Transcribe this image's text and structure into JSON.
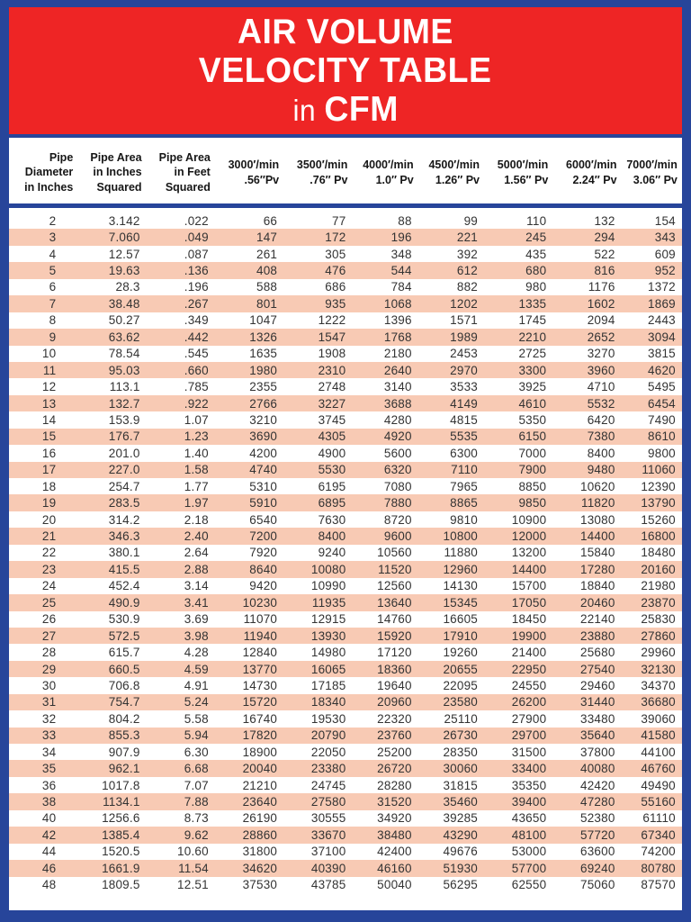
{
  "title": {
    "line1": "AIR VOLUME",
    "line2": "VELOCITY TABLE",
    "line3_prefix": "in ",
    "line3_bold": "CFM"
  },
  "colors": {
    "banner_red": "#ee2525",
    "border_navy": "#27459a",
    "stripe_salmon": "#f8cab4",
    "text": "#333333"
  },
  "table": {
    "headers": [
      [
        "Pipe",
        "Diameter",
        "in Inches"
      ],
      [
        "Pipe Area",
        "in Inches",
        "Squared"
      ],
      [
        "Pipe Area",
        "in Feet",
        "Squared"
      ],
      [
        "3000′/min",
        ".56″Pv"
      ],
      [
        "3500′/min",
        ".76″ Pv"
      ],
      [
        "4000′/min",
        "1.0″ Pv"
      ],
      [
        "4500′/min",
        "1.26″ Pv"
      ],
      [
        "5000′/min",
        "1.56″ Pv"
      ],
      [
        "6000′/min",
        "2.24″ Pv"
      ],
      [
        "7000′/min",
        "3.06″ Pv"
      ]
    ],
    "rows": [
      [
        "2",
        "3.142",
        ".022",
        "66",
        "77",
        "88",
        "99",
        "110",
        "132",
        "154"
      ],
      [
        "3",
        "7.060",
        ".049",
        "147",
        "172",
        "196",
        "221",
        "245",
        "294",
        "343"
      ],
      [
        "4",
        "12.57",
        ".087",
        "261",
        "305",
        "348",
        "392",
        "435",
        "522",
        "609"
      ],
      [
        "5",
        "19.63",
        ".136",
        "408",
        "476",
        "544",
        "612",
        "680",
        "816",
        "952"
      ],
      [
        "6",
        "28.3",
        ".196",
        "588",
        "686",
        "784",
        "882",
        "980",
        "1176",
        "1372"
      ],
      [
        "7",
        "38.48",
        ".267",
        "801",
        "935",
        "1068",
        "1202",
        "1335",
        "1602",
        "1869"
      ],
      [
        "8",
        "50.27",
        ".349",
        "1047",
        "1222",
        "1396",
        "1571",
        "1745",
        "2094",
        "2443"
      ],
      [
        "9",
        "63.62",
        ".442",
        "1326",
        "1547",
        "1768",
        "1989",
        "2210",
        "2652",
        "3094"
      ],
      [
        "10",
        "78.54",
        ".545",
        "1635",
        "1908",
        "2180",
        "2453",
        "2725",
        "3270",
        "3815"
      ],
      [
        "11",
        "95.03",
        ".660",
        "1980",
        "2310",
        "2640",
        "2970",
        "3300",
        "3960",
        "4620"
      ],
      [
        "12",
        "113.1",
        ".785",
        "2355",
        "2748",
        "3140",
        "3533",
        "3925",
        "4710",
        "5495"
      ],
      [
        "13",
        "132.7",
        ".922",
        "2766",
        "3227",
        "3688",
        "4149",
        "4610",
        "5532",
        "6454"
      ],
      [
        "14",
        "153.9",
        "1.07",
        "3210",
        "3745",
        "4280",
        "4815",
        "5350",
        "6420",
        "7490"
      ],
      [
        "15",
        "176.7",
        "1.23",
        "3690",
        "4305",
        "4920",
        "5535",
        "6150",
        "7380",
        "8610"
      ],
      [
        "16",
        "201.0",
        "1.40",
        "4200",
        "4900",
        "5600",
        "6300",
        "7000",
        "8400",
        "9800"
      ],
      [
        "17",
        "227.0",
        "1.58",
        "4740",
        "5530",
        "6320",
        "7110",
        "7900",
        "9480",
        "11060"
      ],
      [
        "18",
        "254.7",
        "1.77",
        "5310",
        "6195",
        "7080",
        "7965",
        "8850",
        "10620",
        "12390"
      ],
      [
        "19",
        "283.5",
        "1.97",
        "5910",
        "6895",
        "7880",
        "8865",
        "9850",
        "11820",
        "13790"
      ],
      [
        "20",
        "314.2",
        "2.18",
        "6540",
        "7630",
        "8720",
        "9810",
        "10900",
        "13080",
        "15260"
      ],
      [
        "21",
        "346.3",
        "2.40",
        "7200",
        "8400",
        "9600",
        "10800",
        "12000",
        "14400",
        "16800"
      ],
      [
        "22",
        "380.1",
        "2.64",
        "7920",
        "9240",
        "10560",
        "11880",
        "13200",
        "15840",
        "18480"
      ],
      [
        "23",
        "415.5",
        "2.88",
        "8640",
        "10080",
        "11520",
        "12960",
        "14400",
        "17280",
        "20160"
      ],
      [
        "24",
        "452.4",
        "3.14",
        "9420",
        "10990",
        "12560",
        "14130",
        "15700",
        "18840",
        "21980"
      ],
      [
        "25",
        "490.9",
        "3.41",
        "10230",
        "11935",
        "13640",
        "15345",
        "17050",
        "20460",
        "23870"
      ],
      [
        "26",
        "530.9",
        "3.69",
        "11070",
        "12915",
        "14760",
        "16605",
        "18450",
        "22140",
        "25830"
      ],
      [
        "27",
        "572.5",
        "3.98",
        "11940",
        "13930",
        "15920",
        "17910",
        "19900",
        "23880",
        "27860"
      ],
      [
        "28",
        "615.7",
        "4.28",
        "12840",
        "14980",
        "17120",
        "19260",
        "21400",
        "25680",
        "29960"
      ],
      [
        "29",
        "660.5",
        "4.59",
        "13770",
        "16065",
        "18360",
        "20655",
        "22950",
        "27540",
        "32130"
      ],
      [
        "30",
        "706.8",
        "4.91",
        "14730",
        "17185",
        "19640",
        "22095",
        "24550",
        "29460",
        "34370"
      ],
      [
        "31",
        "754.7",
        "5.24",
        "15720",
        "18340",
        "20960",
        "23580",
        "26200",
        "31440",
        "36680"
      ],
      [
        "32",
        "804.2",
        "5.58",
        "16740",
        "19530",
        "22320",
        "25110",
        "27900",
        "33480",
        "39060"
      ],
      [
        "33",
        "855.3",
        "5.94",
        "17820",
        "20790",
        "23760",
        "26730",
        "29700",
        "35640",
        "41580"
      ],
      [
        "34",
        "907.9",
        "6.30",
        "18900",
        "22050",
        "25200",
        "28350",
        "31500",
        "37800",
        "44100"
      ],
      [
        "35",
        "962.1",
        "6.68",
        "20040",
        "23380",
        "26720",
        "30060",
        "33400",
        "40080",
        "46760"
      ],
      [
        "36",
        "1017.8",
        "7.07",
        "21210",
        "24745",
        "28280",
        "31815",
        "35350",
        "42420",
        "49490"
      ],
      [
        "38",
        "1134.1",
        "7.88",
        "23640",
        "27580",
        "31520",
        "35460",
        "39400",
        "47280",
        "55160"
      ],
      [
        "40",
        "1256.6",
        "8.73",
        "26190",
        "30555",
        "34920",
        "39285",
        "43650",
        "52380",
        "61110"
      ],
      [
        "42",
        "1385.4",
        "9.62",
        "28860",
        "33670",
        "38480",
        "43290",
        "48100",
        "57720",
        "67340"
      ],
      [
        "44",
        "1520.5",
        "10.60",
        "31800",
        "37100",
        "42400",
        "49676",
        "53000",
        "63600",
        "74200"
      ],
      [
        "46",
        "1661.9",
        "11.54",
        "34620",
        "40390",
        "46160",
        "51930",
        "57700",
        "69240",
        "80780"
      ],
      [
        "48",
        "1809.5",
        "12.51",
        "37530",
        "43785",
        "50040",
        "56295",
        "62550",
        "75060",
        "87570"
      ]
    ]
  }
}
